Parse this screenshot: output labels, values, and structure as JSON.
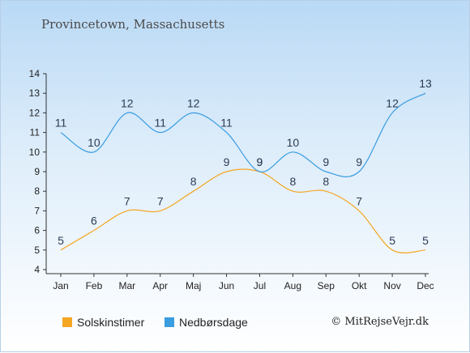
{
  "title": "Provincetown, Massachusetts",
  "credit": "© MitRejseVejr.dk",
  "chart_data": {
    "type": "line",
    "categories": [
      "Jan",
      "Feb",
      "Mar",
      "Apr",
      "Maj",
      "Jun",
      "Jul",
      "Aug",
      "Sep",
      "Okt",
      "Nov",
      "Dec"
    ],
    "ylim": [
      4,
      14
    ],
    "yticks": [
      4,
      5,
      6,
      7,
      8,
      9,
      10,
      11,
      12,
      13,
      14
    ],
    "grid": false,
    "legend_position": "bottom-left",
    "series": [
      {
        "name": "Solskinstimer",
        "color": "#f5a623",
        "values": [
          5,
          6,
          7,
          7,
          8,
          9,
          9,
          8,
          8,
          7,
          5,
          5
        ]
      },
      {
        "name": "Nedbørsdage",
        "color": "#3a9de0",
        "values": [
          11,
          10,
          12,
          11,
          12,
          11,
          9,
          10,
          9,
          9,
          12,
          13
        ]
      }
    ]
  }
}
